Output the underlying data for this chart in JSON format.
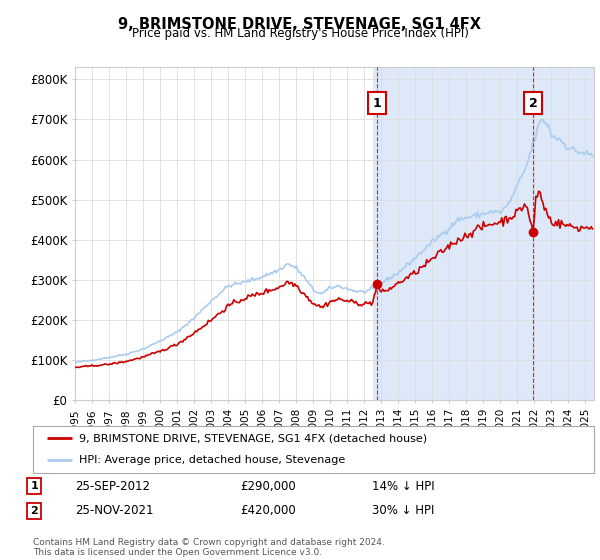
{
  "title": "9, BRIMSTONE DRIVE, STEVENAGE, SG1 4FX",
  "subtitle": "Price paid vs. HM Land Registry's House Price Index (HPI)",
  "ylabel_ticks": [
    "£0",
    "£100K",
    "£200K",
    "£300K",
    "£400K",
    "£500K",
    "£600K",
    "£700K",
    "£800K"
  ],
  "ytick_values": [
    0,
    100000,
    200000,
    300000,
    400000,
    500000,
    600000,
    700000,
    800000
  ],
  "ylim": [
    0,
    830000
  ],
  "xlim_start": 1995.0,
  "xlim_end": 2025.5,
  "hpi_color": "#aaccee",
  "price_color": "#cc0000",
  "marker1_date": 2012.75,
  "marker1_label": "1",
  "marker2_date": 2021.92,
  "marker2_label": "2",
  "dot1_value": 290000,
  "dot2_value": 420000,
  "legend_label1": "9, BRIMSTONE DRIVE, STEVENAGE, SG1 4FX (detached house)",
  "legend_label2": "HPI: Average price, detached house, Stevenage",
  "footer": "Contains HM Land Registry data © Crown copyright and database right 2024.\nThis data is licensed under the Open Government Licence v3.0.",
  "bg_color": "#f5f5f5",
  "plot_bg": "#ffffff",
  "shaded_region_start": 2012.5,
  "shaded_region_end": 2025.5,
  "shaded_color": "#dde8f8"
}
